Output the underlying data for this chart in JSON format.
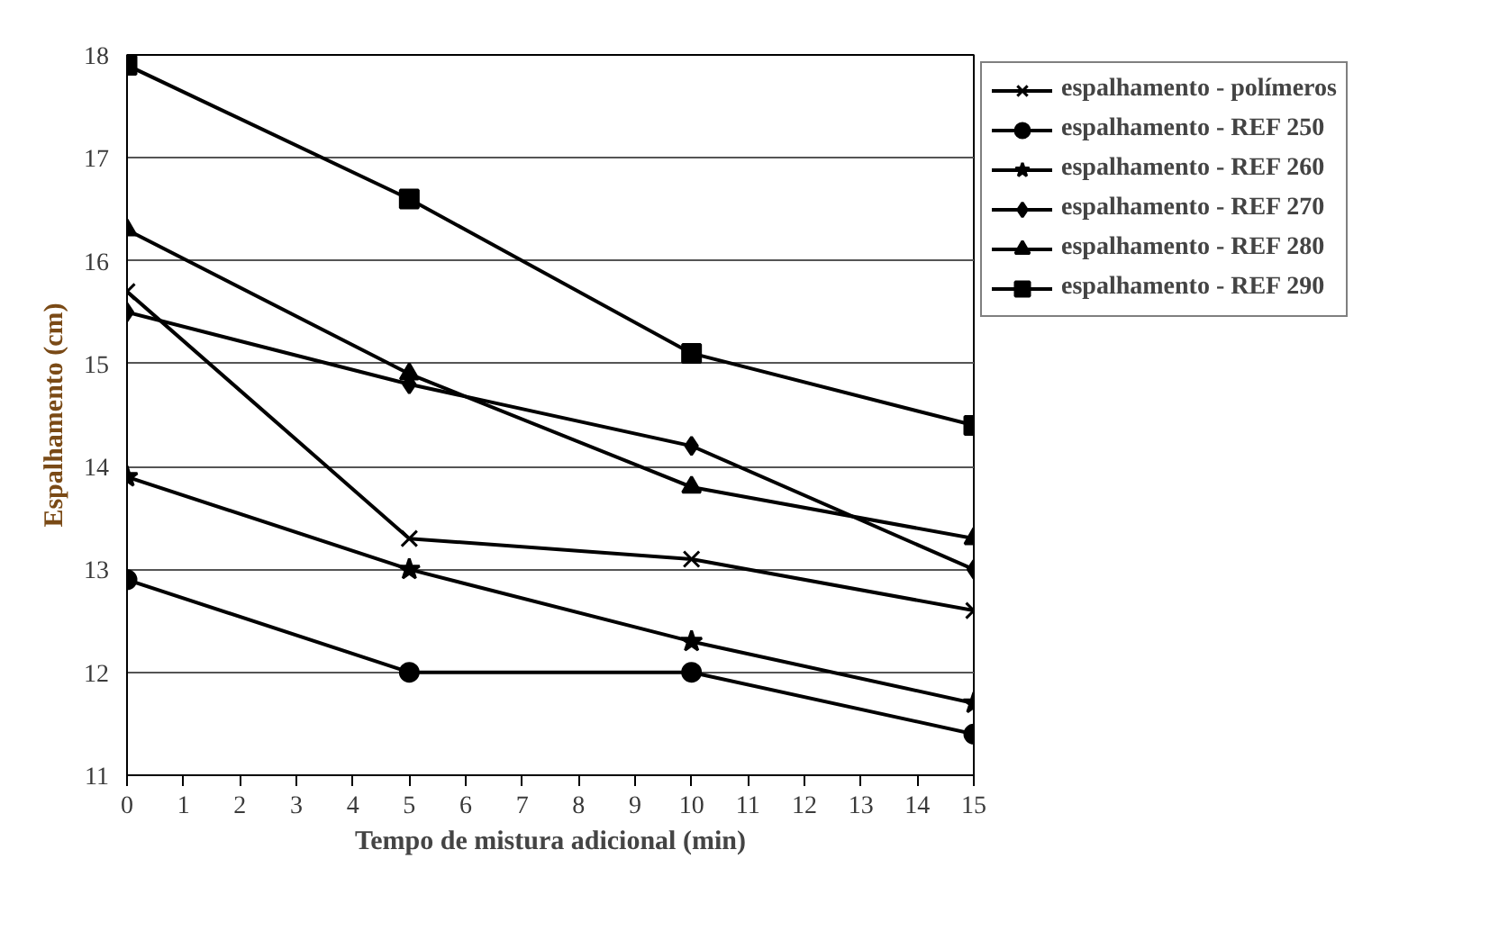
{
  "chart_data": {
    "type": "line",
    "xlabel": "Tempo de mistura adicional (min)",
    "ylabel": "Espalhamento (cm)",
    "x": [
      0,
      5,
      10,
      15
    ],
    "xlim": [
      0,
      15
    ],
    "xticks": [
      0,
      1,
      2,
      3,
      4,
      5,
      6,
      7,
      8,
      9,
      10,
      11,
      12,
      13,
      14,
      15
    ],
    "ylim": [
      11,
      18
    ],
    "yticks": [
      11,
      12,
      13,
      14,
      15,
      16,
      17,
      18
    ],
    "grid": "y",
    "legend": "top right",
    "line_style": "solid",
    "series": [
      {
        "name": "espalhamento - polímeros",
        "color": "#000000",
        "marker": "cross",
        "values": [
          15.7,
          13.3,
          13.1,
          12.6
        ]
      },
      {
        "name": "espalhamento - REF 250",
        "color": "#000000",
        "marker": "circle",
        "values": [
          12.9,
          12.0,
          12.0,
          11.4
        ]
      },
      {
        "name": "espalhamento - REF 260",
        "color": "#000000",
        "marker": "star",
        "values": [
          13.9,
          13.0,
          12.3,
          11.7
        ]
      },
      {
        "name": "espalhamento - REF 270",
        "color": "#000000",
        "marker": "diamond",
        "values": [
          15.5,
          14.8,
          14.2,
          13.0
        ]
      },
      {
        "name": "espalhamento - REF 280",
        "color": "#000000",
        "marker": "triangle",
        "values": [
          16.3,
          14.9,
          13.8,
          13.3
        ]
      },
      {
        "name": "espalhamento - REF 290",
        "color": "#000000",
        "marker": "square",
        "values": [
          17.9,
          16.6,
          15.1,
          14.4
        ]
      }
    ]
  }
}
